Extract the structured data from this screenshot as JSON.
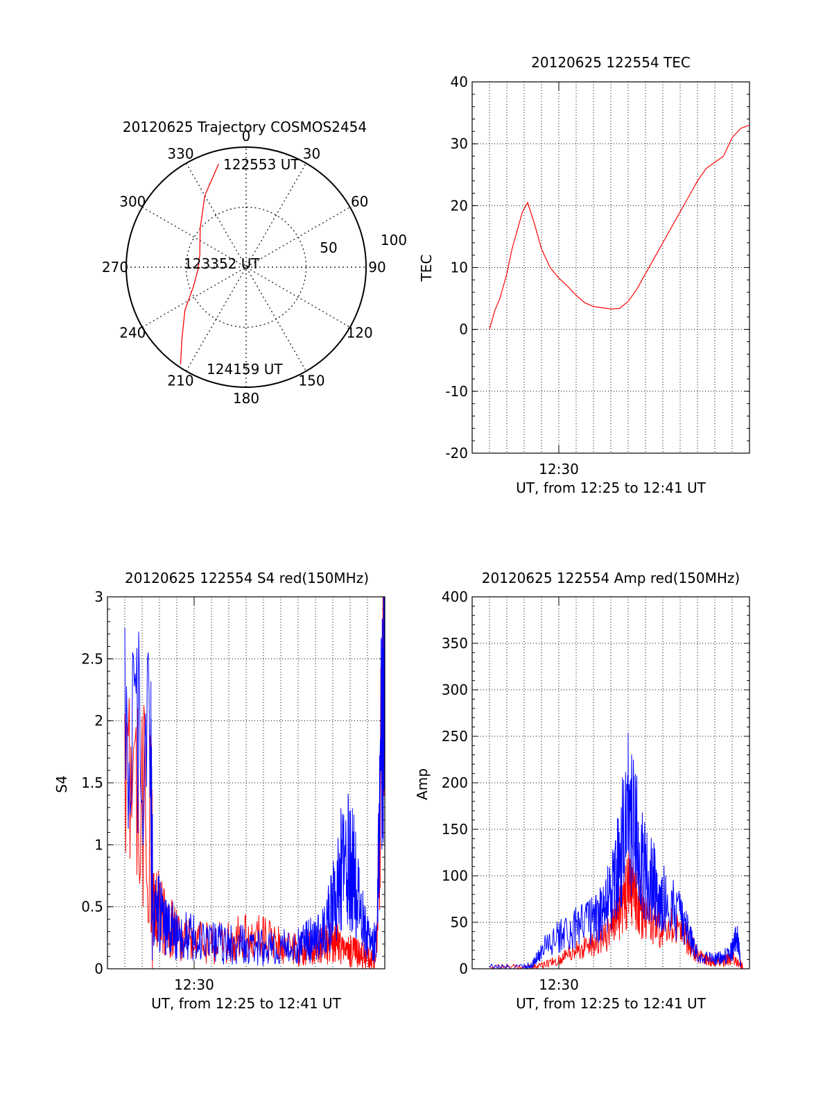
{
  "chart_data": [
    {
      "id": "polar",
      "type": "polar-trajectory",
      "title": "20120625 Trajectory COSMOS2454",
      "azimuth_labels": [
        "0",
        "30",
        "60",
        "90",
        "120",
        "150",
        "180",
        "210",
        "240",
        "270",
        "300",
        "330"
      ],
      "radial_labels": [
        "50",
        "100"
      ],
      "trajectory_color": "#ff0000",
      "trajectory": [
        {
          "az": 345,
          "zenith": 80
        },
        {
          "az": 330,
          "zenith": 62
        },
        {
          "az": 310,
          "zenith": 45
        },
        {
          "az": 285,
          "zenith": 36
        },
        {
          "az": 268,
          "zenith": 36
        },
        {
          "az": 250,
          "zenith": 42
        },
        {
          "az": 235,
          "zenith": 56
        },
        {
          "az": 222,
          "zenith": 72
        },
        {
          "az": 214,
          "zenith": 88
        }
      ],
      "annotations": [
        "122553 UT",
        "123352 UT",
        "124159 UT"
      ]
    },
    {
      "id": "tec",
      "type": "line",
      "title": "20120625 122554 TEC",
      "ylabel": "TEC",
      "xlabel": "UT, from 12:25 to 12:41 UT",
      "xtick_label": "12:30",
      "xlim": [
        0,
        16
      ],
      "ylim": [
        -20,
        40
      ],
      "yticks": [
        "40",
        "30",
        "20",
        "10",
        "0",
        "-10",
        "-20"
      ],
      "series": [
        {
          "color": "#ff0000",
          "x": [
            1.0,
            1.3,
            1.6,
            2.0,
            2.3,
            2.6,
            2.9,
            3.2,
            3.6,
            4.0,
            4.5,
            5.0,
            5.5,
            6.0,
            6.5,
            7.0,
            7.5,
            8.0,
            8.5,
            9.0,
            9.5,
            10.0,
            10.5,
            11.0,
            11.5,
            12.0,
            12.5,
            13.0,
            13.5,
            14.0,
            14.5,
            15.0,
            15.5,
            16.0
          ],
          "y": [
            0,
            3,
            5,
            9,
            13,
            16,
            19,
            20.5,
            17,
            13,
            10,
            8.3,
            7,
            5.5,
            4.3,
            3.7,
            3.5,
            3.3,
            3.4,
            4.5,
            6.5,
            9,
            11.5,
            14,
            16.5,
            19,
            21.5,
            24,
            26,
            27,
            28,
            31,
            32.5,
            33
          ]
        }
      ]
    },
    {
      "id": "s4",
      "type": "line",
      "title": "20120625 122554 S4 red(150MHz)",
      "ylabel": "S4",
      "xlabel": "UT, from 12:25 to 12:41 UT",
      "xtick_label": "12:30",
      "xlim": [
        0,
        16
      ],
      "ylim": [
        0,
        3
      ],
      "yticks": [
        "3",
        "2.5",
        "2",
        "1.5",
        "1",
        "0.5",
        "0"
      ],
      "series": [
        {
          "color": "#ff0000",
          "x": [
            1.0,
            2.5,
            2.6,
            3.0,
            3.5,
            4.0,
            5.0,
            6.0,
            7.0,
            8.0,
            9.0,
            10.0,
            11.0,
            11.5,
            12.0,
            12.5,
            13.0,
            13.5,
            14.0,
            14.5,
            15.0,
            15.5,
            16.0
          ],
          "y": [
            1.6,
            1.2,
            0.55,
            0.45,
            0.35,
            0.27,
            0.22,
            0.2,
            0.22,
            0.25,
            0.24,
            0.18,
            0.15,
            0.16,
            0.18,
            0.2,
            0.22,
            0.18,
            0.14,
            0.12,
            0.09,
            0.08,
            2.9
          ]
        },
        {
          "color": "#0000ff",
          "x": [
            1.0,
            2.5,
            2.6,
            3.0,
            3.5,
            4.0,
            5.0,
            6.0,
            7.0,
            8.0,
            9.0,
            10.0,
            11.0,
            11.5,
            12.0,
            12.5,
            13.0,
            13.5,
            14.0,
            14.5,
            15.0,
            15.5,
            16.0
          ],
          "y": [
            2.0,
            1.7,
            0.55,
            0.45,
            0.35,
            0.28,
            0.24,
            0.21,
            0.2,
            0.19,
            0.17,
            0.17,
            0.18,
            0.22,
            0.25,
            0.3,
            0.5,
            0.8,
            0.9,
            0.55,
            0.25,
            0.2,
            3.0
          ]
        }
      ]
    },
    {
      "id": "amp",
      "type": "line",
      "title": "20120625 122554 Amp red(150MHz)",
      "ylabel": "Amp",
      "xlabel": "UT, from 12:25 to 12:41 UT",
      "xtick_label": "12:30",
      "xlim": [
        0,
        16
      ],
      "ylim": [
        0,
        400
      ],
      "yticks": [
        "400",
        "350",
        "300",
        "250",
        "200",
        "150",
        "100",
        "50",
        "0"
      ],
      "series": [
        {
          "color": "#ff0000",
          "x": [
            1.0,
            3.0,
            4.0,
            5.0,
            6.0,
            7.0,
            8.0,
            8.5,
            9.0,
            9.5,
            10.0,
            11.0,
            12.0,
            12.5,
            13.0,
            13.5,
            14.0,
            14.5,
            15.0,
            15.5,
            15.6
          ],
          "y": [
            2,
            2,
            3,
            10,
            20,
            25,
            40,
            60,
            85,
            70,
            55,
            45,
            40,
            30,
            15,
            10,
            8,
            8,
            12,
            5,
            2
          ]
        },
        {
          "color": "#0000ff",
          "x": [
            1.0,
            3.0,
            3.5,
            4.0,
            5.0,
            6.0,
            7.0,
            7.5,
            8.0,
            8.5,
            9.0,
            9.5,
            10.0,
            10.5,
            11.0,
            12.0,
            12.5,
            13.0,
            14.0,
            14.5,
            15.0,
            15.3,
            15.5
          ],
          "y": [
            2,
            2,
            5,
            20,
            35,
            45,
            55,
            60,
            80,
            120,
            170,
            140,
            100,
            90,
            75,
            55,
            35,
            15,
            10,
            12,
            20,
            35,
            3
          ]
        }
      ]
    }
  ]
}
